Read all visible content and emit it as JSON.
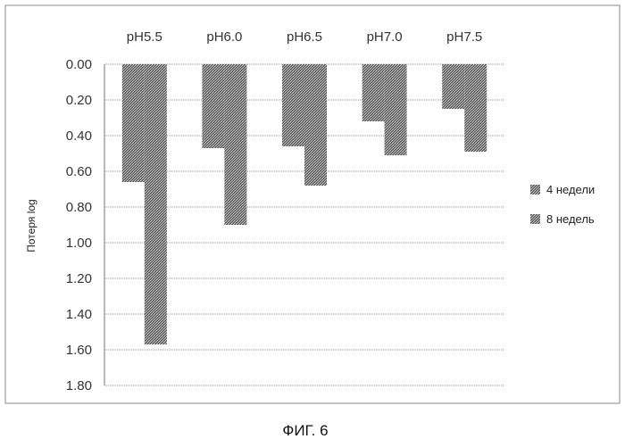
{
  "chart_data": {
    "type": "bar",
    "orientation": "vertical-inverted",
    "categories": [
      "pH5.5",
      "pH6.0",
      "pH6.5",
      "pH7.0",
      "pH7.5"
    ],
    "category_axis_position": "top",
    "series": [
      {
        "name": "4 недели",
        "values": [
          0.66,
          0.47,
          0.46,
          0.32,
          0.25
        ]
      },
      {
        "name": "8 недель",
        "values": [
          1.57,
          0.9,
          0.68,
          0.51,
          0.49
        ]
      }
    ],
    "ylabel": "Потеря log",
    "ylim": [
      0.0,
      1.8
    ],
    "y_inverted": true,
    "y_ticks": [
      "0.00",
      "0.20",
      "0.40",
      "0.60",
      "0.80",
      "1.00",
      "1.20",
      "1.40",
      "1.60",
      "1.80"
    ],
    "grid": true,
    "legend_position": "right",
    "colors": {
      "series_fill": "#5a5a5a",
      "hatch": "#e8e8e8",
      "grid": "#9a9a9a"
    }
  },
  "caption": "ФИГ. 6"
}
